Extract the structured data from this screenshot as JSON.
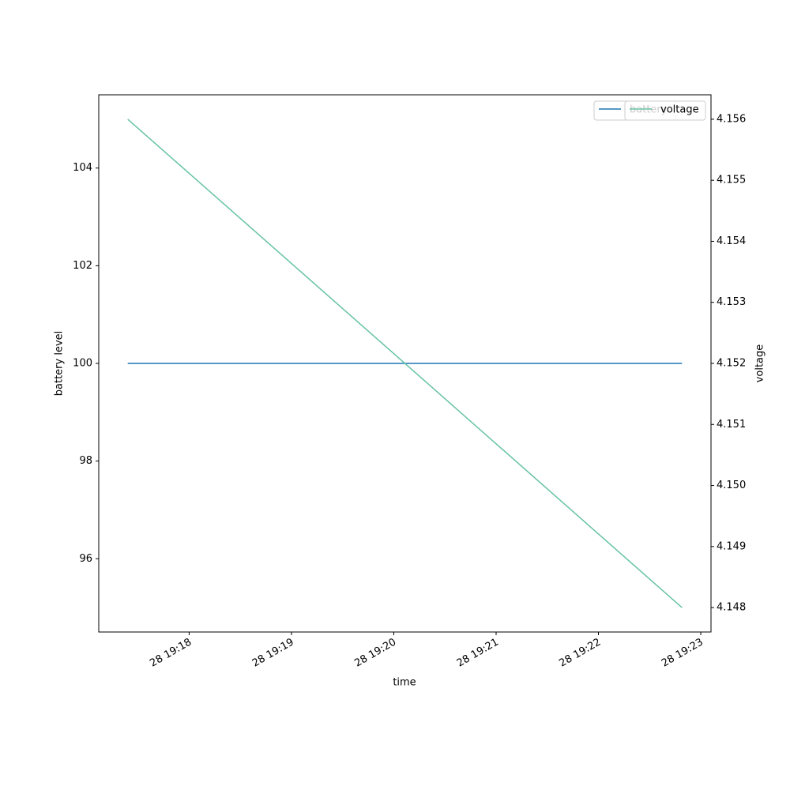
{
  "chart_data": {
    "type": "line",
    "xlabel": "time",
    "ylabel": "battery level",
    "y2label": "voltage",
    "x": [
      "28 19:17:24",
      "28 19:22:49"
    ],
    "xlim": [
      "28 19:17:07",
      "28 19:23:06"
    ],
    "xticks": [
      "28 19:18",
      "28 19:19",
      "28 19:20",
      "28 19:21",
      "28 19:22",
      "28 19:23"
    ],
    "ylim": [
      94.5,
      105.5
    ],
    "yticks": [
      96,
      98,
      100,
      102,
      104
    ],
    "y2lim": [
      4.1476,
      4.1564
    ],
    "y2ticks": [
      4.148,
      4.149,
      {
        "value": 4.15,
        "label": "4.150"
      },
      4.151,
      4.152,
      4.153,
      4.154,
      4.155,
      4.156
    ],
    "grid": false,
    "legend": "upper right",
    "series": [
      {
        "name": "battery",
        "color": "#1f77b4",
        "values": [
          100,
          100
        ]
      },
      {
        "name": "voltage",
        "color": "#66c2a5",
        "axis": "y2",
        "values": [
          4.156,
          4.148
        ]
      }
    ]
  }
}
